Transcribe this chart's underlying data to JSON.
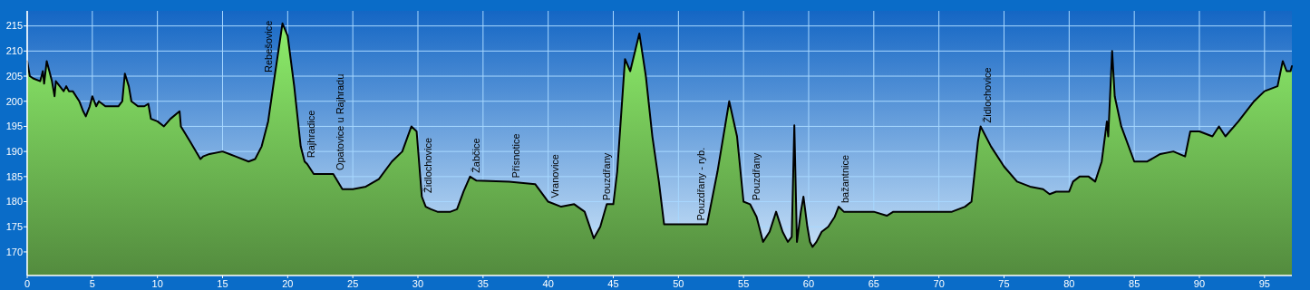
{
  "chart_data": {
    "type": "area",
    "grid": true,
    "xlim": [
      0,
      97.1
    ],
    "ylim": [
      165.3,
      218
    ],
    "xticks": [
      0,
      5,
      10,
      15,
      20,
      25,
      30,
      35,
      40,
      45,
      50,
      55,
      60,
      65,
      70,
      75,
      80,
      85,
      90,
      95
    ],
    "yticks": [
      170,
      175,
      180,
      185,
      190,
      195,
      200,
      205,
      210,
      215
    ],
    "series": [
      {
        "color": "#72c056",
        "x": [
          0,
          0.2,
          0.5,
          1,
          1.2,
          1.3,
          1.5,
          1.7,
          1.9,
          2.1,
          2.2,
          2.5,
          2.8,
          3,
          3.2,
          3.5,
          4,
          4.3,
          4.5,
          4.8,
          5,
          5.3,
          5.5,
          6,
          7,
          7.3,
          7.5,
          7.8,
          8,
          8.5,
          9,
          9.3,
          9.5,
          10,
          10.5,
          11,
          11.7,
          11.8,
          12.5,
          13.3,
          13.5,
          14,
          15,
          16,
          17,
          17.5,
          18,
          18.5,
          19,
          19.6,
          20,
          20.5,
          21,
          21.3,
          21.5,
          22,
          23.5,
          24.2,
          25,
          26,
          27,
          28,
          28.8,
          29.5,
          29.9,
          30.3,
          30.6,
          31,
          31.5,
          32.5,
          33,
          33.5,
          34,
          34.5,
          37,
          39,
          40,
          41,
          42,
          42.8,
          43.5,
          44,
          44.5,
          45,
          45.3,
          45.9,
          46.3,
          47,
          47.5,
          48,
          48.5,
          48.9,
          52.2,
          53,
          53.9,
          54.5,
          55,
          55.5,
          56,
          56.5,
          57,
          57.5,
          58,
          58.4,
          58.7,
          58.9,
          59.1,
          59.4,
          59.6,
          59.9,
          60.1,
          60.3,
          60.6,
          61,
          61.5,
          62,
          62.3,
          62.7,
          65,
          66,
          66.5,
          70,
          71,
          72,
          72.5,
          73,
          73.2,
          74,
          75,
          76,
          77,
          78,
          78.5,
          79,
          80,
          80.3,
          80.8,
          81.5,
          82,
          82.5,
          82.9,
          83,
          83.3,
          83.5,
          84,
          85,
          86,
          87,
          88,
          88.9,
          89.3,
          90,
          91,
          91.5,
          92,
          93,
          94.2,
          95,
          96,
          96.4,
          96.7,
          97,
          97.1
        ],
        "values": [
          208,
          205,
          204.5,
          204,
          206,
          203.5,
          208,
          206,
          204,
          201,
          204,
          203,
          202,
          203,
          202,
          202,
          200,
          198,
          197,
          199,
          201,
          199,
          200,
          199,
          199,
          200,
          205.5,
          203,
          200,
          199,
          199,
          199.5,
          196.5,
          196,
          195,
          196.5,
          198,
          195,
          192,
          188.5,
          189,
          189.5,
          190,
          189,
          188,
          188.5,
          191,
          196,
          205,
          215.5,
          213,
          203,
          191,
          188,
          187.5,
          185.5,
          185.5,
          182.5,
          182.5,
          183,
          184.5,
          188,
          190,
          195,
          194,
          181,
          179,
          178.5,
          178,
          178,
          178.5,
          182,
          185,
          184.2,
          184,
          183.5,
          180,
          179,
          179.5,
          178,
          172.7,
          175,
          179.5,
          179.5,
          186,
          208.4,
          206,
          213.5,
          205,
          193,
          184,
          175.5,
          175.5,
          186,
          200,
          193,
          180,
          179.5,
          177,
          172,
          174,
          178,
          174,
          172,
          173,
          195.2,
          172,
          178,
          181,
          175,
          172,
          171,
          172,
          174,
          175,
          177,
          179,
          178,
          178,
          177.2,
          178,
          178,
          178,
          179,
          180,
          192,
          195,
          191,
          187,
          184,
          183,
          182.5,
          181.5,
          182,
          182,
          184,
          185,
          185,
          184,
          188,
          196,
          193,
          210,
          201,
          195,
          188,
          188,
          189.5,
          190,
          189,
          194,
          194,
          193,
          195,
          193,
          196,
          200,
          202,
          203,
          208,
          206,
          206,
          207
        ]
      }
    ],
    "annotations": [
      {
        "text": "Rebešovice",
        "x": 19,
        "y": 205
      },
      {
        "text": "Rajhradice",
        "x": 21.3,
        "y": 188
      },
      {
        "text": "Opatovice u Rajhradu",
        "x": 23.5,
        "y": 185.5
      },
      {
        "text": "Židlochovice",
        "x": 30.3,
        "y": 181
      },
      {
        "text": "Žabčice",
        "x": 34,
        "y": 185
      },
      {
        "text": "Přísnotice",
        "x": 37,
        "y": 184
      },
      {
        "text": "Vranovice",
        "x": 40,
        "y": 180
      },
      {
        "text": "Pouzdřany",
        "x": 45,
        "y": 179.5
      },
      {
        "text": "Pouzdřany - ryb.",
        "x": 52.2,
        "y": 175.5
      },
      {
        "text": "Pouzdřany",
        "x": 55.5,
        "y": 179.5
      },
      {
        "text": "bažantnice",
        "x": 62.3,
        "y": 179
      },
      {
        "text": "Židlochovice",
        "x": 73.2,
        "y": 195
      }
    ]
  }
}
